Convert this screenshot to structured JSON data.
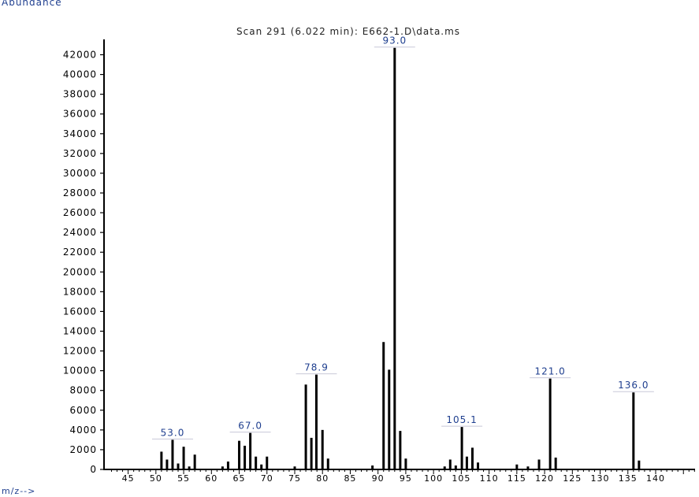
{
  "chart_data": {
    "type": "bar",
    "title": "Scan 291 (6.022 min): E662-1.D\\data.ms",
    "ylabel": "Abundance",
    "xlabel": "m/z-->",
    "xlim": [
      42,
      148
    ],
    "ylim": [
      0,
      42500
    ],
    "yticks": [
      0,
      2000,
      4000,
      6000,
      8000,
      10000,
      12000,
      14000,
      16000,
      18000,
      20000,
      22000,
      24000,
      26000,
      28000,
      30000,
      32000,
      34000,
      36000,
      38000,
      40000,
      42000
    ],
    "xticks": [
      45,
      50,
      55,
      60,
      65,
      70,
      75,
      80,
      85,
      90,
      95,
      100,
      105,
      110,
      115,
      120,
      125,
      130,
      135,
      140
    ],
    "peaks": [
      {
        "mz": 51,
        "abundance": 1800
      },
      {
        "mz": 52,
        "abundance": 1000
      },
      {
        "mz": 53,
        "abundance": 3000,
        "label": "53.0"
      },
      {
        "mz": 54,
        "abundance": 600
      },
      {
        "mz": 55,
        "abundance": 2300
      },
      {
        "mz": 56,
        "abundance": 300
      },
      {
        "mz": 57,
        "abundance": 1500
      },
      {
        "mz": 62,
        "abundance": 300
      },
      {
        "mz": 63,
        "abundance": 800
      },
      {
        "mz": 65,
        "abundance": 2900
      },
      {
        "mz": 66,
        "abundance": 2400
      },
      {
        "mz": 67,
        "abundance": 3700,
        "label": "67.0"
      },
      {
        "mz": 68,
        "abundance": 1300
      },
      {
        "mz": 69,
        "abundance": 500
      },
      {
        "mz": 70,
        "abundance": 1300
      },
      {
        "mz": 75,
        "abundance": 300
      },
      {
        "mz": 77,
        "abundance": 8600
      },
      {
        "mz": 78,
        "abundance": 3200
      },
      {
        "mz": 78.9,
        "abundance": 9600,
        "label": "78.9"
      },
      {
        "mz": 80,
        "abundance": 4000
      },
      {
        "mz": 81,
        "abundance": 1100
      },
      {
        "mz": 89,
        "abundance": 400
      },
      {
        "mz": 91,
        "abundance": 12900
      },
      {
        "mz": 92,
        "abundance": 10100
      },
      {
        "mz": 93,
        "abundance": 42700,
        "label": "93.0"
      },
      {
        "mz": 94,
        "abundance": 3900
      },
      {
        "mz": 95,
        "abundance": 1100
      },
      {
        "mz": 102,
        "abundance": 300
      },
      {
        "mz": 103,
        "abundance": 1000
      },
      {
        "mz": 104,
        "abundance": 400
      },
      {
        "mz": 105.1,
        "abundance": 4300,
        "label": "105.1"
      },
      {
        "mz": 106,
        "abundance": 1300
      },
      {
        "mz": 107,
        "abundance": 2200
      },
      {
        "mz": 108,
        "abundance": 700
      },
      {
        "mz": 115,
        "abundance": 500
      },
      {
        "mz": 117,
        "abundance": 300
      },
      {
        "mz": 119,
        "abundance": 1000
      },
      {
        "mz": 121,
        "abundance": 9200,
        "label": "121.0"
      },
      {
        "mz": 122,
        "abundance": 1200
      },
      {
        "mz": 136,
        "abundance": 7800,
        "label": "136.0"
      },
      {
        "mz": 137,
        "abundance": 900
      }
    ]
  }
}
